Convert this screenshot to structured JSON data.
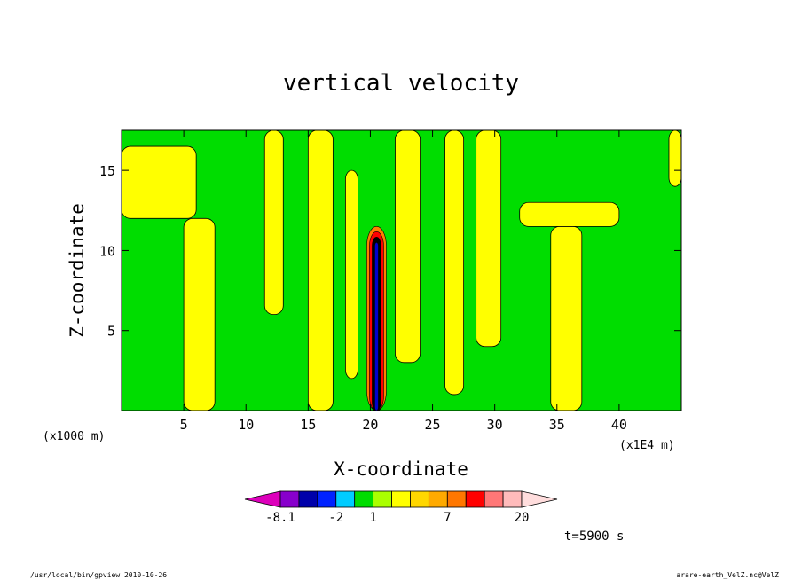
{
  "chart_data": {
    "type": "heatmap",
    "title": "vertical velocity",
    "xlabel": "X-coordinate",
    "ylabel": "Z-coordinate",
    "x_unit_left": "(x1000 m)",
    "x_unit_right": "(x1E4 m)",
    "xlim": [
      0,
      45
    ],
    "ylim": [
      0,
      17.5
    ],
    "x_ticks": [
      5,
      10,
      15,
      20,
      25,
      30,
      35,
      40
    ],
    "y_ticks": [
      5,
      10,
      15
    ],
    "x_tick_labels": [
      "5",
      "10",
      "15",
      "20",
      "25",
      "30",
      "35",
      "40"
    ],
    "y_tick_labels": [
      "5",
      "10",
      "15"
    ],
    "background_level_color": "#00dd00",
    "positive_level_color": "#ffff00",
    "yellow_zones": [
      {
        "x0": 5.0,
        "x1": 7.5,
        "z0": 0,
        "z1": 12.0
      },
      {
        "x0": 0.0,
        "x1": 6.0,
        "z0": 12.0,
        "z1": 16.5
      },
      {
        "x0": 11.5,
        "x1": 13.0,
        "z0": 6.0,
        "z1": 17.5
      },
      {
        "x0": 15.0,
        "x1": 17.0,
        "z0": 0,
        "z1": 17.5
      },
      {
        "x0": 18.0,
        "x1": 19.0,
        "z0": 2.0,
        "z1": 15.0
      },
      {
        "x0": 22.0,
        "x1": 24.0,
        "z0": 3.0,
        "z1": 17.5
      },
      {
        "x0": 26.0,
        "x1": 27.5,
        "z0": 1.0,
        "z1": 17.5
      },
      {
        "x0": 28.5,
        "x1": 30.5,
        "z0": 4.0,
        "z1": 17.5
      },
      {
        "x0": 34.5,
        "x1": 37.0,
        "z0": 0,
        "z1": 11.5
      },
      {
        "x0": 32.0,
        "x1": 40.0,
        "z0": 11.5,
        "z1": 13.0
      },
      {
        "x0": 44.0,
        "x1": 45.0,
        "z0": 14.0,
        "z1": 17.5
      }
    ],
    "core": {
      "x_center": 20.5,
      "z_top": 11.5,
      "colors": [
        "#ff7f00",
        "#ff0000",
        "#000000",
        "#0000cc"
      ]
    },
    "colorbar": {
      "colors": [
        "#dd00bb",
        "#8800cc",
        "#0000aa",
        "#0022ff",
        "#00ccff",
        "#00dd00",
        "#aaff00",
        "#ffff00",
        "#ffd700",
        "#ffaa00",
        "#ff7700",
        "#ff0000",
        "#ff7777",
        "#ffbbbb",
        "#ffdddd"
      ],
      "tick_labels": [
        "-8.1",
        "-2",
        "1",
        "7",
        "20"
      ],
      "tick_boundaries": [
        1,
        4,
        6,
        10,
        14
      ]
    }
  },
  "time_label": "t=5900 s",
  "footer": {
    "left": "/usr/local/bin/gpview  2010-10-26",
    "right": "arare-earth_VelZ.nc@VelZ"
  }
}
